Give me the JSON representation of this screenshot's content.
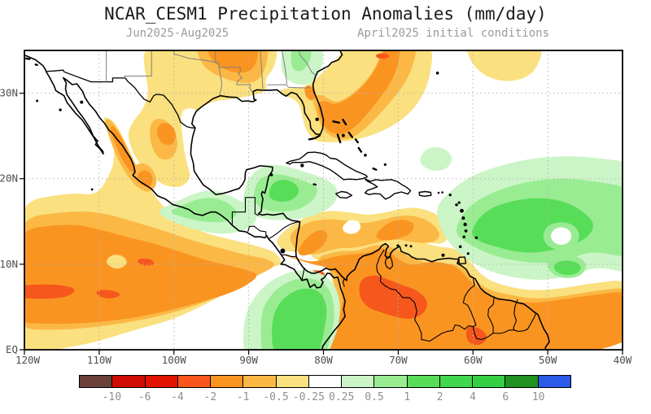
{
  "page": {
    "title": "NCAR_CESM1 Precipitation Anomalies (mm/day)",
    "subtitle_left": "Jun2025-Aug2025",
    "subtitle_right": "April2025 initial conditions"
  },
  "axes": {
    "lat_labels": [
      "30N",
      "20N",
      "10N",
      "EQ"
    ],
    "lat_values": [
      30,
      20,
      10,
      0
    ],
    "lon_labels": [
      "120W",
      "110W",
      "100W",
      "90W",
      "80W",
      "70W",
      "60W",
      "50W",
      "40W"
    ],
    "lon_values": [
      -120,
      -110,
      -100,
      -90,
      -80,
      -70,
      -60,
      -50,
      -40
    ]
  },
  "colorbar": {
    "labels": [
      "-10",
      "-6",
      "-4",
      "-2",
      "-1",
      "-0.5",
      "-0.25",
      "0.25",
      "0.5",
      "1",
      "2",
      "4",
      "6",
      "10"
    ],
    "colors": [
      "#6b4139",
      "#cf0d05",
      "#e21300",
      "#f8561c",
      "#fa9421",
      "#fbb845",
      "#fae07e",
      "#ffffff",
      "#cbf5c6",
      "#99ec92",
      "#58dd58",
      "#42d54f",
      "#36cf44",
      "#21911f",
      "#2b59e8"
    ],
    "patterned_segments": [
      2,
      11,
      12
    ]
  },
  "palette": {
    "yellow": "#fae07e",
    "lt_orange": "#fbb845",
    "orange": "#fa9421",
    "red_orange": "#f6571d",
    "pale_green": "#cbf5c6",
    "light_green": "#99ec92",
    "med_green": "#58dd58",
    "white": "#ffffff",
    "coast": "#000000",
    "state_line": "#808080",
    "grid": "#b4b4b4",
    "axis_text": "#4f4f4f",
    "frame": "#000000"
  },
  "chart_data": {
    "type": "heatmap",
    "title": "NCAR_CESM1 Precipitation Anomalies (mm/day)",
    "subtitle_left": "Jun2025-Aug2025",
    "subtitle_right": "April2025 initial conditions",
    "units": "mm/day",
    "lon_range": [
      -120,
      -40
    ],
    "lat_range": [
      0,
      35
    ],
    "grid_spacing_deg": 10,
    "colorbar_levels": [
      -10,
      -6,
      -4,
      -2,
      -1,
      -0.5,
      -0.25,
      0.25,
      0.5,
      1,
      2,
      4,
      6,
      10
    ],
    "legend_position": "bottom",
    "features": [
      {
        "region": "Pacific ITCZ band 120W-85W, 2N-17N",
        "sign": "dry",
        "value_range": "-1 to -2, streaks -2 to -4 near 6-10N"
      },
      {
        "region": "West Mexico Sierra Madre strip 108W-104W, 18N-27N",
        "sign": "dry",
        "value_range": "-0.5 to -2"
      },
      {
        "region": "Northeast Mexico 103W-99W, 22N-27N",
        "sign": "dry",
        "value_range": "-1 to -2"
      },
      {
        "region": "Southern US Texas-Mississippi, core over Arkansas/Louisiana",
        "sign": "dry",
        "value_range": "-0.25 to -2"
      },
      {
        "region": "NW Atlantic band from Florida/Bahamas toward NE exit at 35N",
        "sign": "dry",
        "value_range": "-1 to -2, small -2 to -4 dash at 71W 34N"
      },
      {
        "region": "Subtropical Atlantic blob 61W-50W, 31N-35N",
        "sign": "dry",
        "value_range": "-0.25 to -0.5"
      },
      {
        "region": "Central Caribbean band 86W-63W, 11N-16N",
        "sign": "dry",
        "value_range": "-0.25 to -2 cores near 81W 13N and 70W 14N"
      },
      {
        "region": "Colombia/Venezuela interior",
        "sign": "dry",
        "value_range": "-1 to -2, strong core -2 to -4 at 74W-66W 3N-8N"
      },
      {
        "region": "Panama 81W 8.5N spot",
        "sign": "dry",
        "value_range": "-2 to -4"
      },
      {
        "region": "Guyanas/equatorial Atlantic band 2N-7N to 40W",
        "sign": "dry",
        "value_range": "-1 to -2, spot -2 to -4 near 59W 1.5N"
      },
      {
        "region": "NW Caribbean / Yucatan-Honduras 90W-78W, 14N-21N",
        "sign": "wet",
        "value_range": "+0.25 to +2 core"
      },
      {
        "region": "South Mexico Pacific coast tongue 102W-89W, 13N-18N",
        "sign": "wet",
        "value_range": "+0.25 to +1"
      },
      {
        "region": "East Pacific off Colombia 89W-78W, 0N-9N",
        "sign": "wet",
        "value_range": "+0.25 to +2 core"
      },
      {
        "region": "Tropical Atlantic 64W-40W, 8N-22N",
        "sign": "wet",
        "value_range": "+0.25 to +2 core, white hole near 48W 13N"
      },
      {
        "region": "Georgia/South Carolina 85W-80W, 31N-35N",
        "sign": "wet",
        "value_range": "+0.25 to +1"
      },
      {
        "region": "Blob NE of Puerto Rico 67W-63W, 21N-23.5N",
        "sign": "wet",
        "value_range": "+0.25 to +0.5"
      }
    ]
  }
}
